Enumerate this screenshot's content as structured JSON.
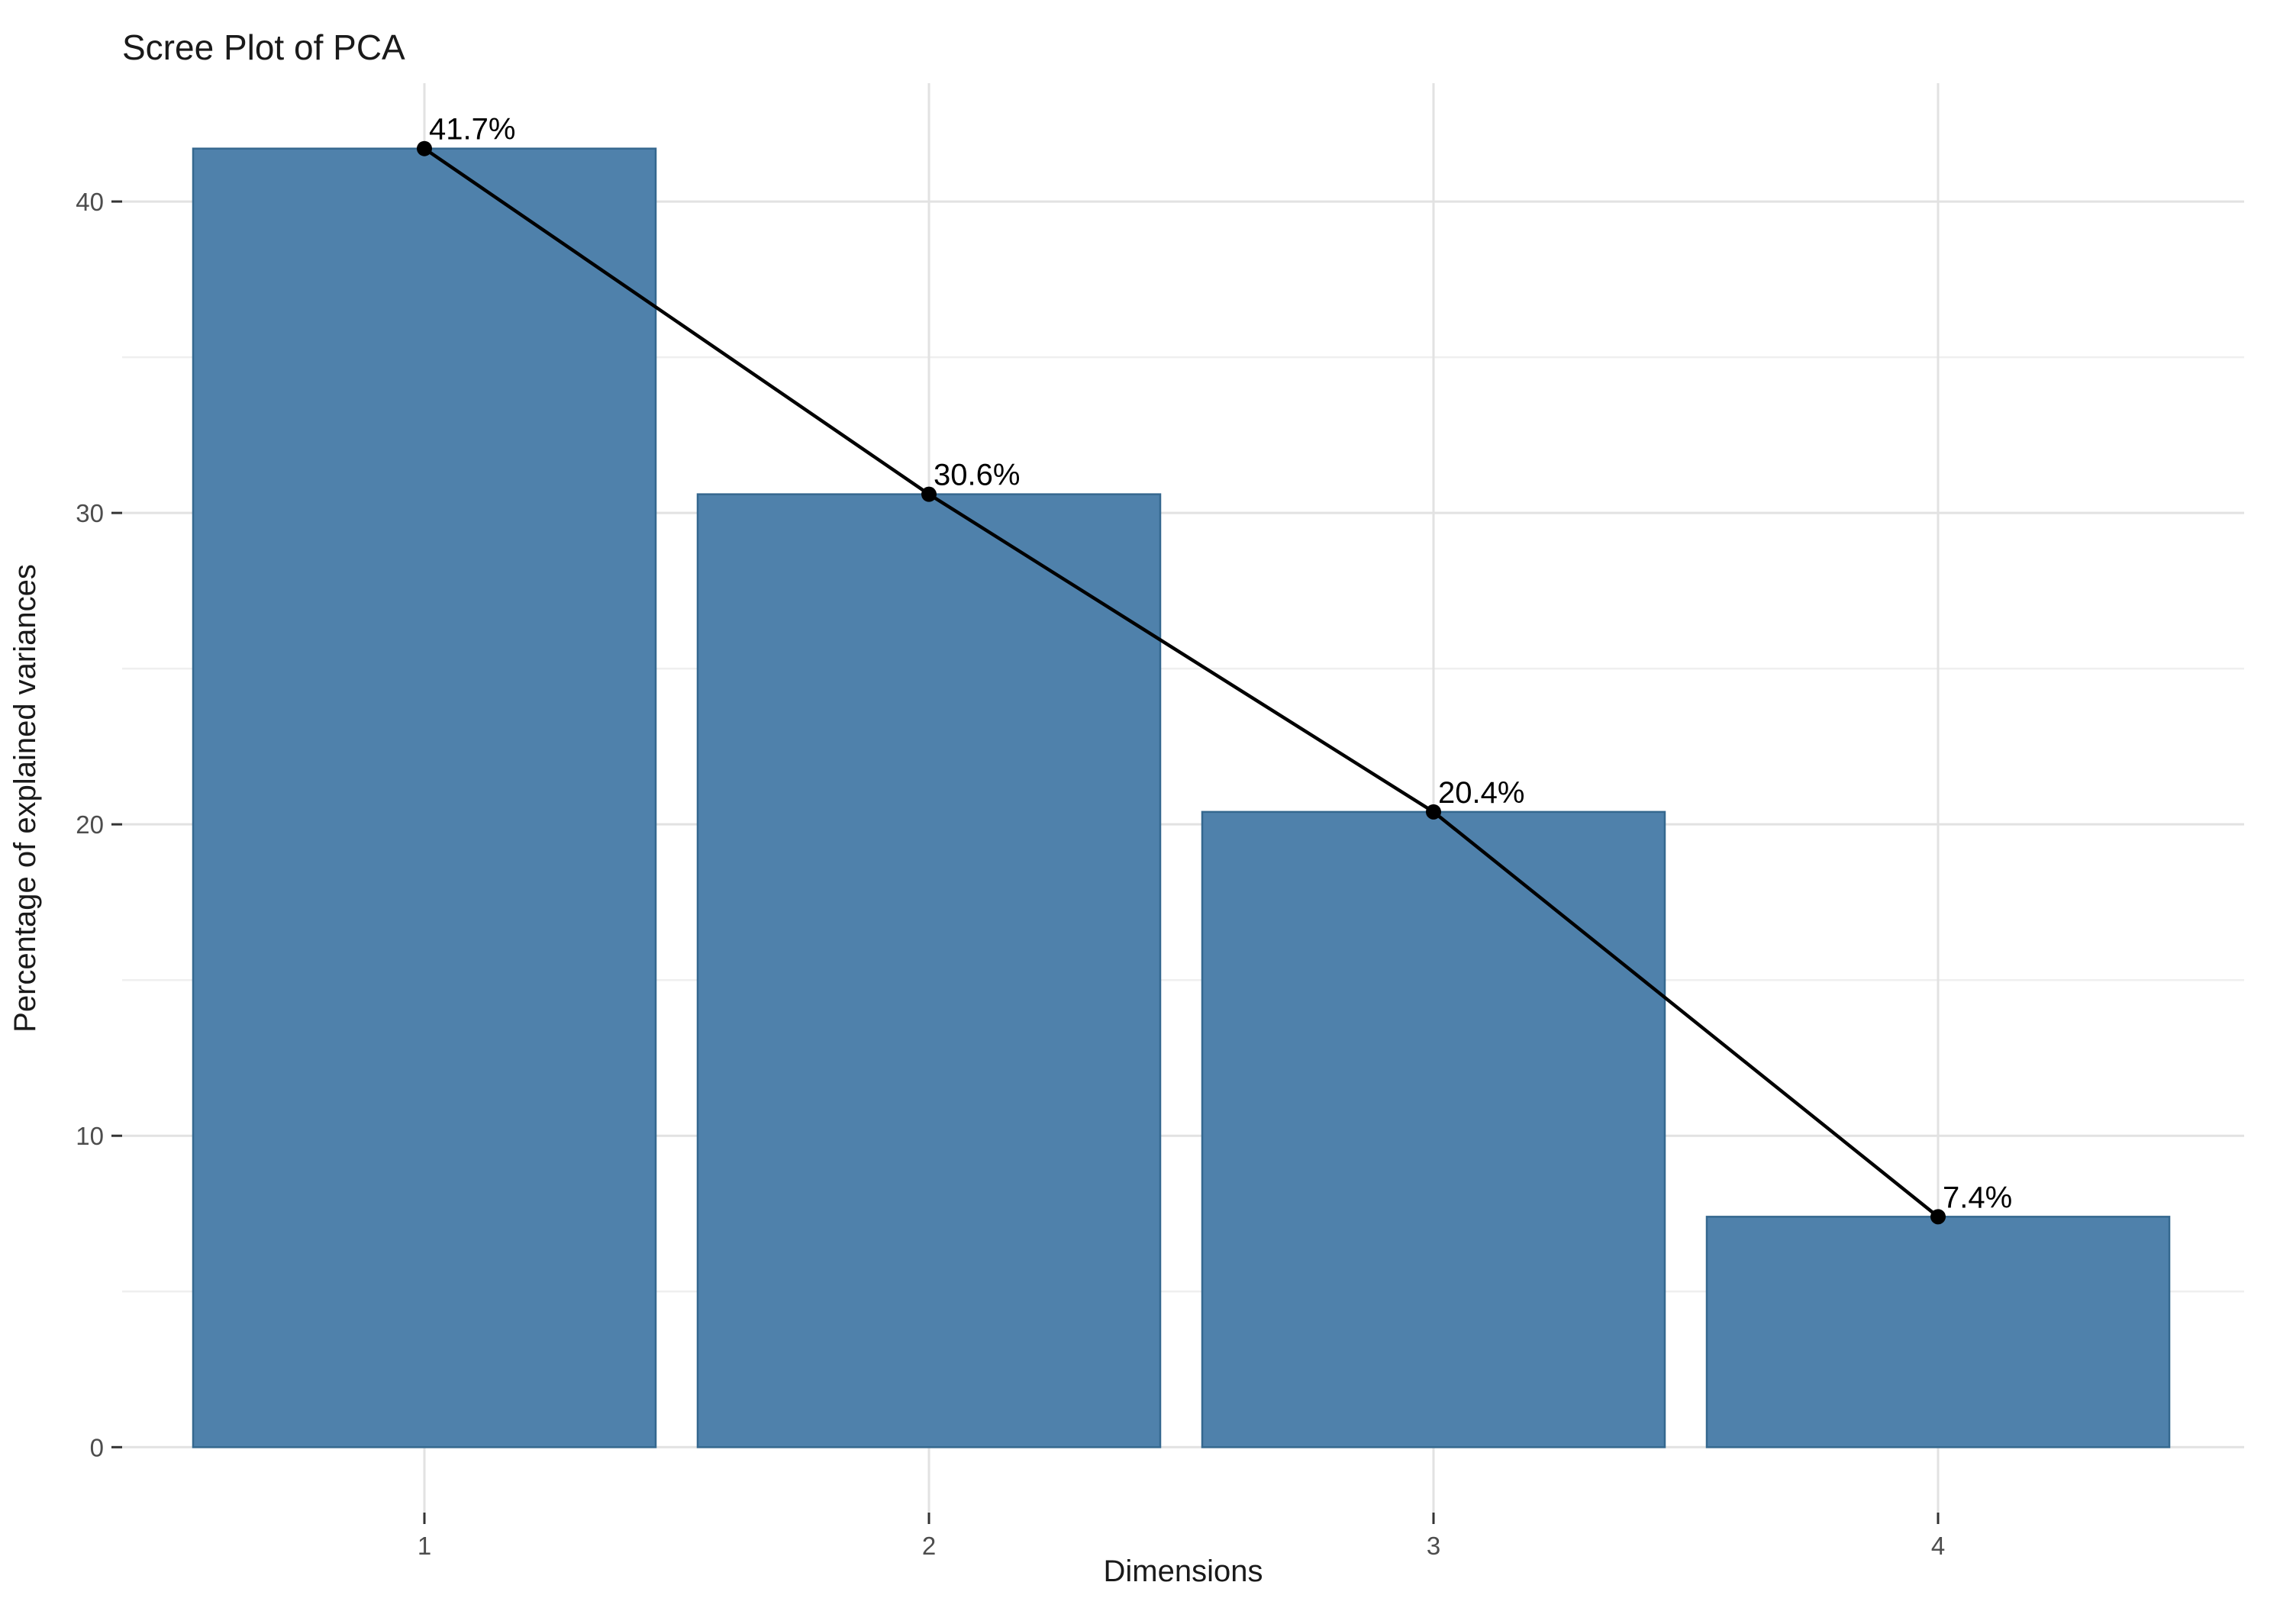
{
  "chart_data": {
    "type": "bar",
    "title": "Scree Plot of PCA",
    "xlabel": "Dimensions",
    "ylabel": "Percentage of explained variances",
    "categories": [
      "1",
      "2",
      "3",
      "4"
    ],
    "values": [
      41.7,
      30.6,
      20.4,
      7.4
    ],
    "bar_labels": [
      "41.7%",
      "30.6%",
      "20.4%",
      "7.4%"
    ],
    "overlay_line_series": {
      "name": "explained-variance-line",
      "x": [
        "1",
        "2",
        "3",
        "4"
      ],
      "values": [
        41.7,
        30.6,
        20.4,
        7.4
      ]
    },
    "y_major_ticks": [
      "0",
      "10",
      "20",
      "30",
      "40"
    ],
    "y_major_values": [
      0,
      10,
      20,
      30,
      40
    ],
    "y_minor_values": [
      5,
      15,
      25,
      35
    ],
    "ylim": [
      -2.1,
      43.8
    ],
    "grid": "on",
    "legend": "none",
    "colors": {
      "bar_fill": "#4f81ab",
      "bar_border": "#35688f",
      "line": "#000000",
      "point": "#000000",
      "grid_major": "#e2e2e2",
      "grid_minor": "#efefef",
      "tick_mark": "#333333",
      "background": "#ffffff"
    }
  }
}
